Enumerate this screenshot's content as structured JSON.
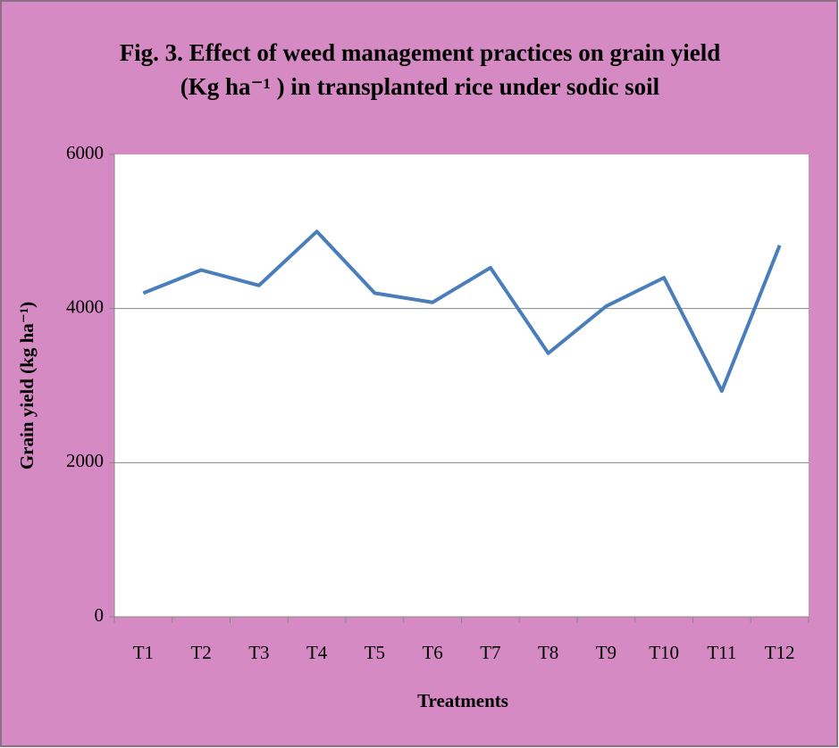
{
  "chart_data": {
    "type": "line",
    "title": [
      "Fig. 3. Effect of weed management practices on grain yield",
      "(Kg ha⁻¹ ) in transplanted rice under sodic soil"
    ],
    "x_label": "Treatments",
    "y_label": "Grain yield (kg ha⁻¹)",
    "categories": [
      "T1",
      "T2",
      "T3",
      "T4",
      "T5",
      "T6",
      "T7",
      "T8",
      "T9",
      "T10",
      "T11",
      "T12"
    ],
    "series": [
      {
        "name": "Grain yield",
        "color": "#4a7ebb",
        "values": [
          4200,
          4500,
          4300,
          5000,
          4200,
          4080,
          4530,
          3420,
          4030,
          4400,
          2930,
          4820
        ]
      }
    ],
    "ylim": [
      0,
      6000
    ],
    "yticks": [
      0,
      2000,
      4000,
      6000
    ],
    "grid": true
  }
}
